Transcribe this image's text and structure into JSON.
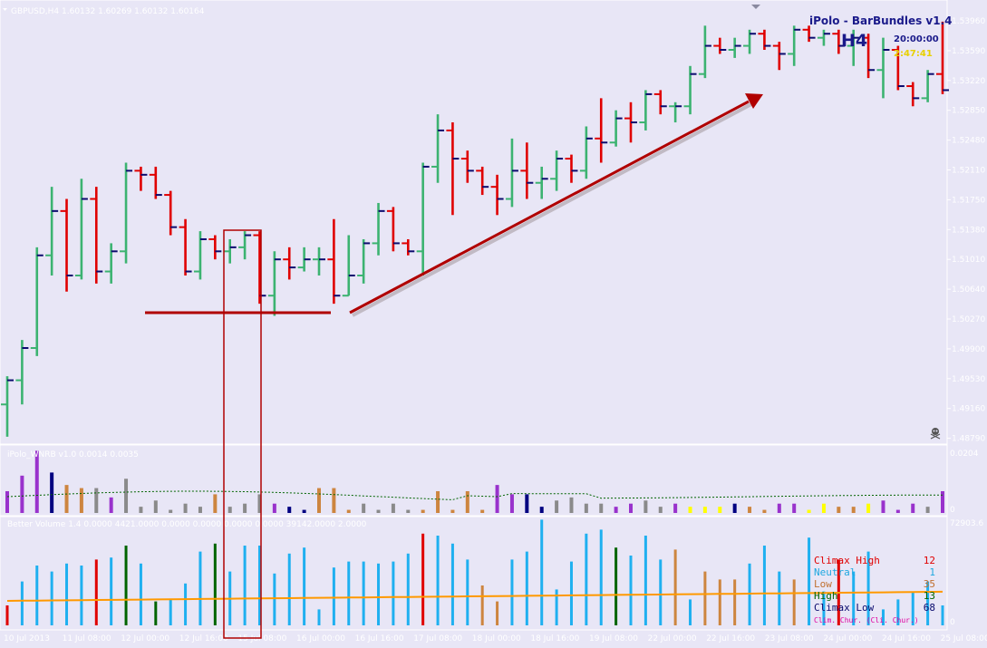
{
  "header": {
    "symbol_info": "GBPUSD,H4 1.60132 1.60269 1.60132 1.60164"
  },
  "indicator_box": {
    "title": "iPolo - BarBundles v1.4",
    "timeframe": "H4",
    "time": "20:00:00",
    "countdown": "2:47:41"
  },
  "price_axis": [
    "1.53960",
    "1.53590",
    "1.53220",
    "1.52850",
    "1.52480",
    "1.52110",
    "1.51750",
    "1.51380",
    "1.51010",
    "1.50640",
    "1.50270",
    "1.49900",
    "1.49530",
    "1.49160",
    "1.48790"
  ],
  "time_axis": [
    "10 Jul 2013",
    "11 Jul 08:00",
    "12 Jul 00:00",
    "12 Jul 16:00",
    "15 Jul 08:00",
    "16 Jul 00:00",
    "16 Jul 16:00",
    "17 Jul 08:00",
    "18 Jul 00:00",
    "18 Jul 16:00",
    "19 Jul 08:00",
    "22 Jul 00:00",
    "22 Jul 16:00",
    "23 Jul 08:00",
    "24 Jul 00:00",
    "24 Jul 16:00",
    "25 Jul 08:00"
  ],
  "panel2": {
    "title": "iPolo_WNRB v1.0 0.0014 0.0035",
    "scale_top": "0.0204",
    "scale_zero": "0"
  },
  "panel3": {
    "title": "Better Volume 1.4 0.0000 4421.0000 0.0000 0.0000 0.0000 0.0000 39142.0000 2.0000",
    "scale_top": "72903.6",
    "scale_bottom": "0",
    "legend": [
      {
        "label": "Climax High",
        "count": "12",
        "color": "#e00000"
      },
      {
        "label": "Neutral",
        "count": "1",
        "color": "#1fa8e0"
      },
      {
        "label": "Low",
        "count": "35",
        "color": "#c07030"
      },
      {
        "label": "High",
        "count": "13",
        "color": "#006400"
      },
      {
        "label": "Climax Low",
        "count": "68",
        "color": "#0b0b6e"
      }
    ],
    "legend_cut": "Clim. Chur. (Cli. Chur.)"
  },
  "colors": {
    "background": "#e8e6f6",
    "bull": "#3cb371",
    "bear": "#e00000",
    "arrow": "#b00000",
    "volume_blue": "#1fb0f0",
    "volume_avg": "#ff9900"
  },
  "chart_data": {
    "type": "bar",
    "price_ylim": [
      1.486,
      1.541
    ],
    "ohlc": [
      [
        1.492,
        1.4955,
        1.488,
        1.495
      ],
      [
        1.495,
        1.5,
        1.492,
        1.499
      ],
      [
        1.499,
        1.5115,
        1.498,
        1.5105
      ],
      [
        1.5105,
        1.519,
        1.508,
        1.516
      ],
      [
        1.516,
        1.5175,
        1.506,
        1.508
      ],
      [
        1.508,
        1.52,
        1.5075,
        1.5175
      ],
      [
        1.5175,
        1.519,
        1.507,
        1.5085
      ],
      [
        1.5085,
        1.512,
        1.507,
        1.511
      ],
      [
        1.511,
        1.522,
        1.5095,
        1.521
      ],
      [
        1.521,
        1.5215,
        1.5185,
        1.5205
      ],
      [
        1.5205,
        1.5215,
        1.5175,
        1.518
      ],
      [
        1.518,
        1.5185,
        1.513,
        1.514
      ],
      [
        1.514,
        1.515,
        1.508,
        1.5085
      ],
      [
        1.5085,
        1.5135,
        1.5075,
        1.5125
      ],
      [
        1.5125,
        1.513,
        1.51,
        1.511
      ],
      [
        1.511,
        1.5125,
        1.5095,
        1.5115
      ],
      [
        1.5115,
        1.5135,
        1.51,
        1.513
      ],
      [
        1.513,
        1.5135,
        1.5045,
        1.5055
      ],
      [
        1.5055,
        1.511,
        1.503,
        1.51
      ],
      [
        1.51,
        1.5115,
        1.5075,
        1.509
      ],
      [
        1.509,
        1.5115,
        1.5085,
        1.51
      ],
      [
        1.51,
        1.5115,
        1.508,
        1.51
      ],
      [
        1.51,
        1.515,
        1.5045,
        1.5055
      ],
      [
        1.5055,
        1.513,
        1.5055,
        1.508
      ],
      [
        1.508,
        1.5125,
        1.507,
        1.512
      ],
      [
        1.512,
        1.517,
        1.5105,
        1.516
      ],
      [
        1.516,
        1.5165,
        1.511,
        1.512
      ],
      [
        1.512,
        1.5125,
        1.5105,
        1.511
      ],
      [
        1.511,
        1.522,
        1.508,
        1.5215
      ],
      [
        1.5215,
        1.528,
        1.5195,
        1.526
      ],
      [
        1.526,
        1.527,
        1.5155,
        1.5225
      ],
      [
        1.5225,
        1.5235,
        1.5195,
        1.521
      ],
      [
        1.521,
        1.5215,
        1.518,
        1.519
      ],
      [
        1.519,
        1.5205,
        1.5155,
        1.5175
      ],
      [
        1.5175,
        1.525,
        1.5165,
        1.521
      ],
      [
        1.521,
        1.5245,
        1.5175,
        1.5195
      ],
      [
        1.5195,
        1.5215,
        1.5175,
        1.52
      ],
      [
        1.52,
        1.5235,
        1.5185,
        1.5225
      ],
      [
        1.5225,
        1.523,
        1.5195,
        1.521
      ],
      [
        1.521,
        1.5265,
        1.52,
        1.525
      ],
      [
        1.525,
        1.53,
        1.522,
        1.5245
      ],
      [
        1.5245,
        1.5285,
        1.524,
        1.5275
      ],
      [
        1.5275,
        1.5295,
        1.5245,
        1.527
      ],
      [
        1.527,
        1.531,
        1.526,
        1.5305
      ],
      [
        1.5305,
        1.531,
        1.528,
        1.529
      ],
      [
        1.529,
        1.5295,
        1.527,
        1.529
      ],
      [
        1.529,
        1.534,
        1.528,
        1.533
      ],
      [
        1.533,
        1.539,
        1.5325,
        1.5365
      ],
      [
        1.5365,
        1.5375,
        1.5355,
        1.536
      ],
      [
        1.536,
        1.5375,
        1.535,
        1.5365
      ],
      [
        1.5365,
        1.5385,
        1.5355,
        1.538
      ],
      [
        1.538,
        1.5385,
        1.536,
        1.5365
      ],
      [
        1.5365,
        1.537,
        1.5335,
        1.5355
      ],
      [
        1.5355,
        1.539,
        1.534,
        1.5385
      ],
      [
        1.5385,
        1.539,
        1.537,
        1.5375
      ],
      [
        1.5375,
        1.5385,
        1.5365,
        1.538
      ],
      [
        1.538,
        1.5385,
        1.5355,
        1.5365
      ],
      [
        1.5365,
        1.5385,
        1.534,
        1.5375
      ],
      [
        1.5375,
        1.538,
        1.5325,
        1.5335
      ],
      [
        1.5335,
        1.5375,
        1.53,
        1.536
      ],
      [
        1.536,
        1.5365,
        1.531,
        1.5315
      ],
      [
        1.5315,
        1.532,
        1.529,
        1.53
      ],
      [
        1.53,
        1.5335,
        1.5295,
        1.533
      ],
      [
        1.533,
        1.5395,
        1.5305,
        1.531
      ]
    ],
    "wnrb": [
      7,
      12,
      20,
      13,
      9,
      8,
      8,
      5,
      11,
      2,
      4,
      1,
      3,
      2,
      6,
      2,
      3,
      6,
      3,
      2,
      1,
      8,
      8,
      1,
      3,
      1,
      3,
      1,
      1,
      7,
      1,
      7,
      1,
      9,
      6,
      6,
      2,
      4,
      5,
      3,
      3,
      2,
      3,
      4,
      2,
      3,
      2,
      2,
      2,
      3,
      2,
      1,
      3,
      3,
      1,
      3,
      2,
      2,
      3,
      4,
      1,
      3,
      2,
      7
    ],
    "wnrb_colors": [
      "purple",
      "purple",
      "purple",
      "navy",
      "peru",
      "peru",
      "grey",
      "purple",
      "grey",
      "grey",
      "grey",
      "grey",
      "grey",
      "grey",
      "peru",
      "grey",
      "grey",
      "grey",
      "purple",
      "navy",
      "navy",
      "peru",
      "peru",
      "peru",
      "grey",
      "grey",
      "grey",
      "grey",
      "peru",
      "peru",
      "peru",
      "peru",
      "peru",
      "purple",
      "purple",
      "navy",
      "navy",
      "grey",
      "grey",
      "grey",
      "grey",
      "purple",
      "purple",
      "grey",
      "grey",
      "purple",
      "yellow",
      "yellow",
      "yellow",
      "navy",
      "peru",
      "peru",
      "purple",
      "purple",
      "yellow",
      "yellow",
      "peru",
      "peru",
      "yellow",
      "purple",
      "purple",
      "purple",
      "grey",
      "purple"
    ],
    "volume": [
      10,
      22,
      30,
      27,
      31,
      30,
      33,
      34,
      40,
      31,
      12,
      13,
      21,
      37,
      41,
      27,
      40,
      40,
      26,
      36,
      39,
      8,
      29,
      32,
      32,
      31,
      32,
      36,
      46,
      45,
      41,
      33,
      20,
      12,
      33,
      37,
      53,
      18,
      32,
      46,
      48,
      39,
      35,
      45,
      33,
      38,
      13,
      27,
      23,
      23,
      31,
      40,
      27,
      23,
      44,
      17,
      33,
      27,
      37,
      8,
      13,
      17,
      22,
      10
    ],
    "volume_colors": [
      "red",
      "blue",
      "blue",
      "blue",
      "blue",
      "blue",
      "red",
      "blue",
      "green",
      "blue",
      "green",
      "blue",
      "blue",
      "blue",
      "green",
      "blue",
      "blue",
      "blue",
      "blue",
      "blue",
      "blue",
      "blue",
      "blue",
      "blue",
      "blue",
      "blue",
      "blue",
      "blue",
      "red",
      "blue",
      "blue",
      "blue",
      "peru",
      "peru",
      "blue",
      "blue",
      "blue",
      "blue",
      "blue",
      "blue",
      "blue",
      "green",
      "blue",
      "blue",
      "blue",
      "peru",
      "blue",
      "peru",
      "peru",
      "peru",
      "blue",
      "blue",
      "blue",
      "peru",
      "blue",
      "blue",
      "red",
      "blue",
      "blue",
      "blue",
      "blue",
      "blue",
      "blue",
      "blue"
    ],
    "volume_ylim": [
      0,
      72903.6
    ]
  }
}
